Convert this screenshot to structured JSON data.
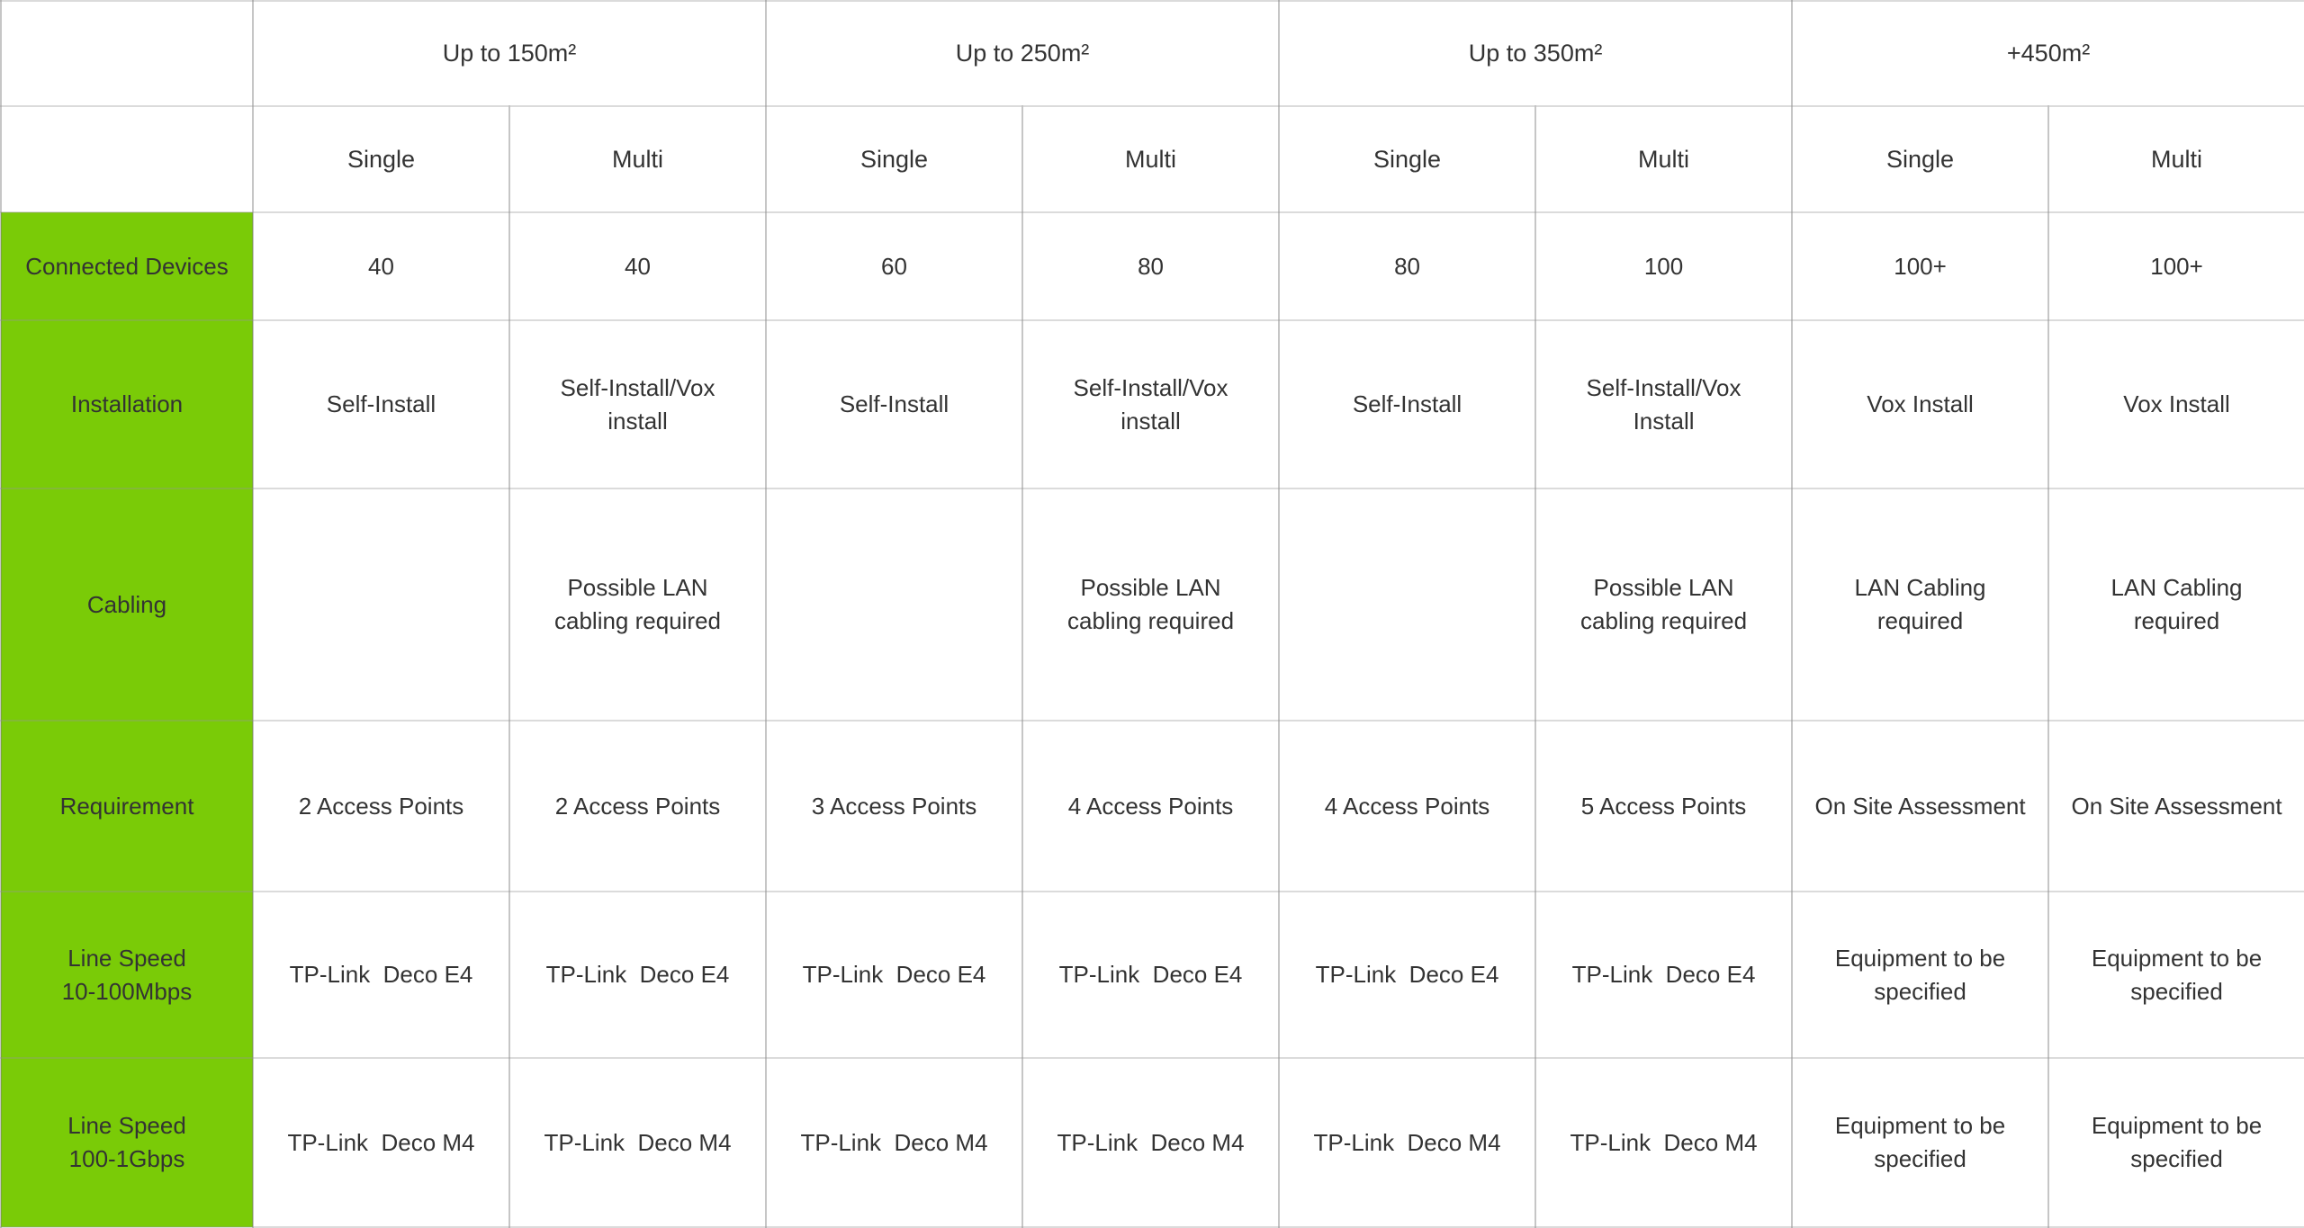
{
  "table": {
    "size_groups": [
      "Up to 150m²",
      "Up to 250m²",
      "Up to 350m²",
      "+450m²"
    ],
    "unit_headers": [
      "Single",
      "Multi",
      "Single",
      "Multi",
      "Single",
      "Multi",
      "Single",
      "Multi"
    ],
    "rows": [
      {
        "label": "Connected Devices",
        "values": [
          "40",
          "40",
          "60",
          "80",
          "80",
          "100",
          "100+",
          "100+"
        ]
      },
      {
        "label": "Installation",
        "values": [
          "Self-Install",
          "Self-Install/Vox\ninstall",
          "Self-Install",
          "Self-Install/Vox\ninstall",
          "Self-Install",
          "Self-Install/Vox\nInstall",
          "Vox Install",
          "Vox Install"
        ]
      },
      {
        "label": "Cabling",
        "values": [
          "",
          "Possible LAN\ncabling required",
          "",
          "Possible LAN\ncabling required",
          "",
          "Possible LAN\ncabling required",
          "LAN Cabling\nrequired",
          "LAN Cabling\nrequired"
        ]
      },
      {
        "label": "Requirement",
        "values": [
          "2 Access Points",
          "2 Access Points",
          "3 Access Points",
          "4 Access Points",
          "4 Access Points",
          "5 Access Points",
          "On Site Assessment",
          "On Site Assessment"
        ]
      },
      {
        "label": "Line Speed\n10-100Mbps",
        "values": [
          "TP-Link  Deco E4",
          "TP-Link  Deco E4",
          "TP-Link  Deco E4",
          "TP-Link  Deco E4",
          "TP-Link  Deco E4",
          "TP-Link  Deco E4",
          "Equipment to be\nspecified",
          "Equipment to be\nspecified"
        ]
      },
      {
        "label": "Line Speed\n100-1Gbps",
        "values": [
          "TP-Link  Deco M4",
          "TP-Link  Deco M4",
          "TP-Link  Deco M4",
          "TP-Link  Deco M4",
          "TP-Link  Deco M4",
          "TP-Link  Deco M4",
          "Equipment to be\nspecified",
          "Equipment to be\nspecified"
        ]
      }
    ],
    "colors": {
      "row_header_bg": "#7ACB07",
      "grid_line": "#c9c9c9",
      "text": "#333333"
    }
  }
}
